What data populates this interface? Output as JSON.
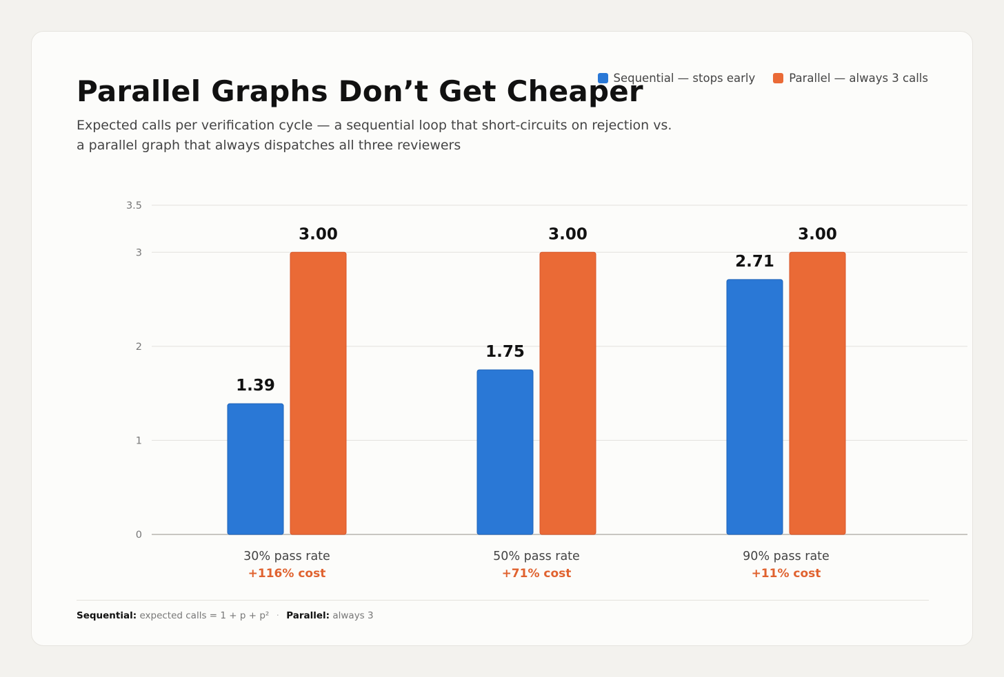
{
  "title": "Parallel Graphs Don’t Get Cheaper",
  "subtitle": "Expected calls per verification cycle — a sequential loop that short-circuits on rejection vs. a parallel graph that always dispatches all three reviewers",
  "legend": [
    {
      "label": "Sequential — stops early",
      "color": "#2a78d6"
    },
    {
      "label": "Parallel — always 3 calls",
      "color": "#ea6a36"
    }
  ],
  "footnote": {
    "seq_label": "Sequential:",
    "seq_text": "expected calls = 1 + p + p²",
    "separator": "·",
    "par_label": "Parallel:",
    "par_text": "always 3"
  },
  "chart_data": {
    "type": "bar",
    "categories": [
      "30% pass rate",
      "50% pass rate",
      "90% pass rate"
    ],
    "cost_labels": [
      "+116% cost",
      "+71% cost",
      "+11% cost"
    ],
    "series": [
      {
        "name": "Sequential — stops early",
        "values": [
          1.39,
          1.75,
          2.71
        ],
        "value_labels": [
          "1.39",
          "1.75",
          "2.71"
        ],
        "color": "#2a78d6"
      },
      {
        "name": "Parallel — always 3 calls",
        "values": [
          3.0,
          3.0,
          3.0
        ],
        "value_labels": [
          "3.00",
          "3.00",
          "3.00"
        ],
        "color": "#ea6a36"
      }
    ],
    "y_ticks": [
      0,
      1,
      2,
      3,
      3.5
    ],
    "ylim": [
      0,
      3.5
    ],
    "grid": true,
    "legend_position": "top-right",
    "cost_color": "#e0622f"
  }
}
